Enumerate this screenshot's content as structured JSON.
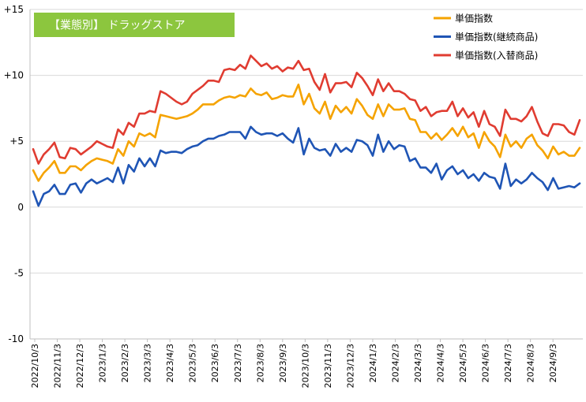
{
  "chart_data": {
    "type": "line",
    "title": "【業態別】 ドラッグストア",
    "xlabel": "",
    "ylabel": "",
    "ylim": [
      -10,
      15
    ],
    "yticks": [
      15,
      10,
      5,
      0,
      -5,
      -10
    ],
    "ytick_labels": [
      "+15",
      "+10",
      "+5",
      "0",
      "-5",
      "-10"
    ],
    "xtick_labels": [
      "2022/10/3",
      "2022/11/3",
      "2022/12/3",
      "2023/1/3",
      "2023/2/3",
      "2023/3/3",
      "2023/4/3",
      "2023/5/3",
      "2023/6/3",
      "2023/7/3",
      "2023/8/3",
      "2023/9/3",
      "2023/10/3",
      "2023/11/3",
      "2023/12/3",
      "2024/1/3",
      "2024/2/3",
      "2024/3/3",
      "2024/4/3",
      "2024/5/3",
      "2024/6/3",
      "2024/7/3",
      "2024/8/3",
      "2024/9/3"
    ],
    "grid": "horizontal",
    "legend_position": "top-right",
    "title_box_color": "#8cc63e",
    "series": [
      {
        "name": "単価指数",
        "color": "#f5a300",
        "values": [
          2.8,
          2.0,
          2.6,
          3.0,
          3.5,
          2.6,
          2.6,
          3.1,
          3.1,
          2.8,
          3.2,
          3.5,
          3.7,
          3.6,
          3.5,
          3.3,
          4.4,
          3.9,
          5.0,
          4.6,
          5.6,
          5.4,
          5.6,
          5.3,
          7.0,
          6.9,
          6.8,
          6.7,
          6.8,
          6.9,
          7.1,
          7.4,
          7.8,
          7.8,
          7.8,
          8.1,
          8.3,
          8.4,
          8.3,
          8.5,
          8.4,
          9.0,
          8.6,
          8.5,
          8.7,
          8.2,
          8.3,
          8.5,
          8.4,
          8.4,
          9.3,
          7.8,
          8.6,
          7.5,
          7.1,
          8.0,
          6.7,
          7.7,
          7.2,
          7.6,
          7.1,
          8.2,
          7.7,
          7.0,
          6.7,
          7.8,
          6.9,
          7.8,
          7.4,
          7.4,
          7.5,
          6.7,
          6.6,
          5.7,
          5.7,
          5.2,
          5.6,
          5.1,
          5.5,
          6.0,
          5.4,
          6.1,
          5.3,
          5.6,
          4.5,
          5.7,
          5.0,
          4.6,
          3.8,
          5.5,
          4.6,
          5.0,
          4.5,
          5.2,
          5.5,
          4.7,
          4.3,
          3.7,
          4.6,
          4.0,
          4.2,
          3.9,
          3.9,
          4.5
        ]
      },
      {
        "name": "単価指数(継続商品)",
        "color": "#1f55b5",
        "values": [
          1.2,
          0.1,
          1.0,
          1.2,
          1.7,
          1.0,
          1.0,
          1.7,
          1.8,
          1.1,
          1.8,
          2.1,
          1.8,
          2.0,
          2.2,
          1.9,
          3.0,
          1.8,
          3.2,
          2.7,
          3.7,
          3.1,
          3.7,
          3.1,
          4.3,
          4.1,
          4.2,
          4.2,
          4.1,
          4.4,
          4.6,
          4.7,
          5.0,
          5.2,
          5.2,
          5.4,
          5.5,
          5.7,
          5.7,
          5.7,
          5.2,
          6.1,
          5.7,
          5.5,
          5.6,
          5.6,
          5.4,
          5.6,
          5.2,
          4.9,
          6.0,
          4.0,
          5.2,
          4.5,
          4.3,
          4.4,
          3.9,
          4.8,
          4.2,
          4.5,
          4.2,
          5.1,
          5.0,
          4.7,
          3.9,
          5.5,
          4.2,
          5.0,
          4.4,
          4.7,
          4.6,
          3.5,
          3.7,
          3.0,
          3.0,
          2.6,
          3.3,
          2.1,
          2.8,
          3.1,
          2.5,
          2.8,
          2.2,
          2.5,
          2.0,
          2.6,
          2.3,
          2.2,
          1.4,
          3.3,
          1.6,
          2.1,
          1.8,
          2.1,
          2.6,
          2.2,
          1.9,
          1.3,
          2.2,
          1.4,
          1.5,
          1.6,
          1.5,
          1.8
        ]
      },
      {
        "name": "単価指数(入替商品)",
        "color": "#e03c31",
        "values": [
          4.4,
          3.3,
          4.0,
          4.4,
          4.9,
          3.8,
          3.7,
          4.5,
          4.4,
          4.0,
          4.3,
          4.6,
          5.0,
          4.8,
          4.6,
          4.5,
          5.9,
          5.5,
          6.4,
          6.1,
          7.1,
          7.1,
          7.3,
          7.2,
          8.8,
          8.6,
          8.3,
          8.0,
          7.8,
          8.0,
          8.6,
          8.9,
          9.2,
          9.6,
          9.6,
          9.5,
          10.4,
          10.5,
          10.4,
          10.8,
          10.5,
          11.5,
          11.1,
          10.7,
          10.9,
          10.5,
          10.7,
          10.3,
          10.6,
          10.5,
          11.1,
          10.4,
          10.5,
          9.5,
          8.9,
          10.1,
          8.7,
          9.4,
          9.4,
          9.5,
          9.1,
          10.2,
          9.8,
          9.2,
          8.5,
          9.7,
          8.8,
          9.4,
          8.8,
          8.8,
          8.6,
          8.2,
          8.1,
          7.3,
          7.6,
          6.9,
          7.2,
          7.3,
          7.3,
          8.0,
          6.9,
          7.5,
          6.8,
          7.2,
          6.1,
          7.3,
          6.3,
          6.1,
          5.4,
          7.4,
          6.7,
          6.7,
          6.5,
          6.9,
          7.6,
          6.5,
          5.6,
          5.4,
          6.3,
          6.3,
          6.2,
          5.7,
          5.5,
          6.6
        ]
      }
    ]
  }
}
